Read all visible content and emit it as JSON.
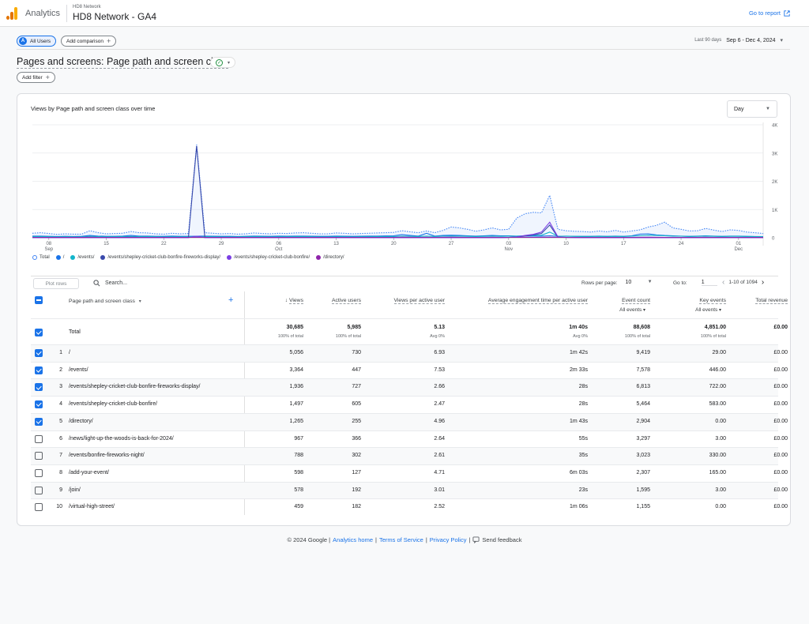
{
  "header": {
    "app_name": "Analytics",
    "account_small": "HD8 Network",
    "property": "HD8 Network - GA4",
    "goto_report": "Go to report"
  },
  "comparison": {
    "badge": "A",
    "all_users": "All Users",
    "add_comparison": "Add comparison",
    "date_label": "Last 90 days",
    "date_range": "Sep 6 - Dec 4, 2024"
  },
  "report": {
    "title": "Pages and screens: Page path and screen class",
    "add_filter": "Add filter"
  },
  "chart": {
    "title": "Views by Page path and screen class over time",
    "granularity": "Day",
    "y_ticks": [
      "4K",
      "3K",
      "2K",
      "1K",
      "0"
    ],
    "x_ticks": [
      {
        "day": "08",
        "month": "Sep"
      },
      {
        "day": "15",
        "month": ""
      },
      {
        "day": "22",
        "month": ""
      },
      {
        "day": "29",
        "month": ""
      },
      {
        "day": "06",
        "month": "Oct"
      },
      {
        "day": "13",
        "month": ""
      },
      {
        "day": "20",
        "month": ""
      },
      {
        "day": "27",
        "month": ""
      },
      {
        "day": "03",
        "month": "Nov"
      },
      {
        "day": "10",
        "month": ""
      },
      {
        "day": "17",
        "month": ""
      },
      {
        "day": "24",
        "month": ""
      },
      {
        "day": "01",
        "month": "Dec"
      }
    ],
    "legend": [
      {
        "label": "Total",
        "color": "#4285f4",
        "hollow": true
      },
      {
        "label": "/",
        "color": "#1a73e8"
      },
      {
        "label": "/events/",
        "color": "#12b5cb"
      },
      {
        "label": "/events/shepley-cricket-club-bonfire-fireworks-display/",
        "color": "#3949ab"
      },
      {
        "label": "/events/shepley-cricket-club-bonfire/",
        "color": "#7b3fe4"
      },
      {
        "label": "/directory/",
        "color": "#8e24aa"
      }
    ]
  },
  "chart_data": {
    "type": "line",
    "title": "Views by Page path and screen class over time",
    "ylim": [
      0,
      4000
    ],
    "x_range": [
      "2024-09-06",
      "2024-12-04"
    ],
    "series": [
      {
        "name": "Total",
        "values": [
          160,
          180,
          150,
          120,
          140,
          130,
          130,
          250,
          180,
          140,
          150,
          160,
          220,
          180,
          170,
          140,
          130,
          160,
          140,
          150,
          3300,
          180,
          160,
          140,
          150,
          130,
          140,
          170,
          150,
          140,
          160,
          150,
          170,
          180,
          160,
          140,
          140,
          170,
          160,
          140,
          150,
          160,
          170,
          180,
          190,
          250,
          210,
          180,
          240,
          180,
          260,
          380,
          350,
          300,
          230,
          280,
          350,
          280,
          300,
          700,
          850,
          900,
          880,
          1500,
          300,
          250,
          230,
          220,
          200,
          240,
          210,
          260,
          200,
          240,
          280,
          380,
          440,
          550,
          350,
          300,
          240,
          250,
          330,
          270,
          220,
          280,
          260,
          200,
          180,
          150
        ]
      },
      {
        "name": "/",
        "values": [
          60,
          60,
          50,
          45,
          50,
          45,
          50,
          80,
          60,
          50,
          50,
          60,
          80,
          60,
          60,
          50,
          50,
          60,
          50,
          50,
          55,
          60,
          55,
          50,
          50,
          45,
          50,
          60,
          55,
          50,
          60,
          55,
          60,
          60,
          55,
          50,
          50,
          60,
          55,
          50,
          55,
          60,
          60,
          65,
          70,
          110,
          80,
          60,
          160,
          60,
          80,
          90,
          80,
          70,
          60,
          70,
          80,
          70,
          70,
          60,
          60,
          60,
          60,
          70,
          50,
          60,
          50,
          50,
          50,
          60,
          50,
          60,
          50,
          70,
          130,
          140,
          100,
          80,
          70,
          60,
          50,
          60,
          70,
          60,
          50,
          60,
          60,
          50,
          45,
          40
        ]
      },
      {
        "name": "/events/",
        "values": [
          40,
          40,
          35,
          30,
          35,
          30,
          30,
          50,
          40,
          35,
          35,
          40,
          45,
          40,
          40,
          35,
          30,
          35,
          30,
          35,
          40,
          40,
          35,
          30,
          30,
          30,
          35,
          40,
          35,
          30,
          35,
          35,
          40,
          40,
          35,
          30,
          30,
          35,
          35,
          30,
          35,
          35,
          40,
          40,
          45,
          55,
          50,
          45,
          60,
          45,
          55,
          60,
          55,
          50,
          45,
          50,
          55,
          50,
          55,
          60,
          70,
          80,
          90,
          200,
          60,
          55,
          50,
          45,
          45,
          50,
          45,
          50,
          45,
          55,
          70,
          90,
          80,
          70,
          60,
          55,
          45,
          50,
          60,
          50,
          45,
          50,
          50,
          45,
          40,
          35
        ]
      },
      {
        "name": "/events/shepley-cricket-club-bonfire-fireworks-display/",
        "values": [
          5,
          5,
          5,
          5,
          5,
          5,
          5,
          5,
          5,
          5,
          5,
          5,
          5,
          5,
          5,
          5,
          5,
          5,
          5,
          5,
          3250,
          5,
          5,
          5,
          5,
          5,
          5,
          5,
          5,
          5,
          5,
          5,
          5,
          5,
          5,
          5,
          5,
          5,
          5,
          5,
          5,
          5,
          5,
          5,
          5,
          5,
          5,
          5,
          5,
          5,
          5,
          5,
          5,
          5,
          5,
          5,
          5,
          5,
          10,
          30,
          60,
          100,
          150,
          450,
          20,
          10,
          10,
          5,
          5,
          5,
          5,
          5,
          5,
          5,
          5,
          5,
          5,
          5,
          5,
          5,
          5,
          5,
          5,
          5,
          5,
          5,
          5,
          5,
          5,
          5
        ]
      },
      {
        "name": "/events/shepley-cricket-club-bonfire/",
        "values": [
          5,
          5,
          5,
          5,
          5,
          5,
          5,
          5,
          5,
          5,
          5,
          5,
          5,
          5,
          5,
          5,
          5,
          5,
          5,
          5,
          60,
          5,
          5,
          5,
          5,
          5,
          5,
          5,
          5,
          5,
          5,
          5,
          5,
          5,
          5,
          5,
          5,
          5,
          5,
          5,
          5,
          5,
          5,
          5,
          5,
          5,
          5,
          5,
          5,
          5,
          5,
          5,
          5,
          5,
          5,
          5,
          5,
          5,
          10,
          30,
          80,
          120,
          200,
          550,
          30,
          10,
          5,
          5,
          5,
          5,
          5,
          5,
          5,
          5,
          5,
          5,
          5,
          5,
          5,
          5,
          5,
          5,
          5,
          5,
          5,
          5,
          5,
          5,
          5,
          5
        ]
      },
      {
        "name": "/directory/",
        "values": [
          15,
          15,
          15,
          12,
          15,
          12,
          12,
          20,
          15,
          15,
          15,
          15,
          18,
          15,
          15,
          15,
          12,
          15,
          12,
          15,
          15,
          15,
          15,
          12,
          12,
          12,
          15,
          15,
          15,
          12,
          15,
          15,
          15,
          15,
          15,
          12,
          12,
          15,
          15,
          12,
          15,
          15,
          15,
          15,
          15,
          20,
          18,
          15,
          18,
          15,
          18,
          20,
          18,
          15,
          15,
          15,
          18,
          15,
          15,
          15,
          15,
          15,
          18,
          20,
          15,
          15,
          15,
          15,
          15,
          15,
          15,
          15,
          15,
          15,
          18,
          20,
          18,
          15,
          15,
          15,
          15,
          15,
          18,
          15,
          15,
          15,
          15,
          15,
          12,
          12
        ]
      }
    ]
  },
  "table": {
    "plot_rows": "Plot rows",
    "search_placeholder": "Search...",
    "rows_per_page_label": "Rows per page:",
    "rows_per_page": "10",
    "goto_label": "Go to:",
    "goto_value": "1",
    "pagination": "1-10 of 1094",
    "dimension_header": "Page path and screen class",
    "columns": [
      {
        "label": "Views",
        "sort": true,
        "sub": ""
      },
      {
        "label": "Active users",
        "sub": ""
      },
      {
        "label": "Views per active user",
        "sub": ""
      },
      {
        "label": "Average engagement time per active user",
        "sub": ""
      },
      {
        "label": "Event count",
        "sub": "All events"
      },
      {
        "label": "Key events",
        "sub": "All events"
      },
      {
        "label": "Total revenue",
        "sub": ""
      }
    ],
    "total": {
      "label": "Total",
      "values": [
        "30,685",
        "5,985",
        "5.13",
        "1m 40s",
        "88,608",
        "4,851.00",
        "£0.00"
      ],
      "subs": [
        "100% of total",
        "100% of total",
        "Avg 0%",
        "Avg 0%",
        "100% of total",
        "100% of total",
        ""
      ]
    },
    "rows": [
      {
        "n": "1",
        "path": "/",
        "checked": true,
        "values": [
          "5,056",
          "730",
          "6.93",
          "1m 42s",
          "9,419",
          "29.00",
          "£0.00"
        ]
      },
      {
        "n": "2",
        "path": "/events/",
        "checked": true,
        "values": [
          "3,364",
          "447",
          "7.53",
          "2m 33s",
          "7,578",
          "446.00",
          "£0.00"
        ]
      },
      {
        "n": "3",
        "path": "/events/shepley-cricket-club-bonfire-fireworks-display/",
        "checked": true,
        "values": [
          "1,936",
          "727",
          "2.66",
          "28s",
          "6,813",
          "722.00",
          "£0.00"
        ]
      },
      {
        "n": "4",
        "path": "/events/shepley-cricket-club-bonfire/",
        "checked": true,
        "values": [
          "1,497",
          "605",
          "2.47",
          "28s",
          "5,464",
          "583.00",
          "£0.00"
        ]
      },
      {
        "n": "5",
        "path": "/directory/",
        "checked": true,
        "values": [
          "1,265",
          "255",
          "4.96",
          "1m 43s",
          "2,904",
          "0.00",
          "£0.00"
        ]
      },
      {
        "n": "6",
        "path": "/news/light-up-the-woods-is-back-for-2024/",
        "checked": false,
        "values": [
          "967",
          "366",
          "2.64",
          "55s",
          "3,297",
          "3.00",
          "£0.00"
        ]
      },
      {
        "n": "7",
        "path": "/events/bonfire-fireworks-night/",
        "checked": false,
        "values": [
          "788",
          "302",
          "2.61",
          "35s",
          "3,023",
          "330.00",
          "£0.00"
        ]
      },
      {
        "n": "8",
        "path": "/add-your-event/",
        "checked": false,
        "values": [
          "598",
          "127",
          "4.71",
          "6m 03s",
          "2,307",
          "165.00",
          "£0.00"
        ]
      },
      {
        "n": "9",
        "path": "/join/",
        "checked": false,
        "values": [
          "578",
          "192",
          "3.01",
          "23s",
          "1,595",
          "3.00",
          "£0.00"
        ]
      },
      {
        "n": "10",
        "path": "/virtual-high-street/",
        "checked": false,
        "values": [
          "459",
          "182",
          "2.52",
          "1m 06s",
          "1,155",
          "0.00",
          "£0.00"
        ]
      }
    ]
  },
  "footer": {
    "copyright": "© 2024 Google |",
    "analytics_home": "Analytics home",
    "sep1": "|",
    "terms": "Terms of Service",
    "sep2": "|",
    "privacy": "Privacy Policy",
    "sep3": "|",
    "feedback": "Send feedback"
  }
}
